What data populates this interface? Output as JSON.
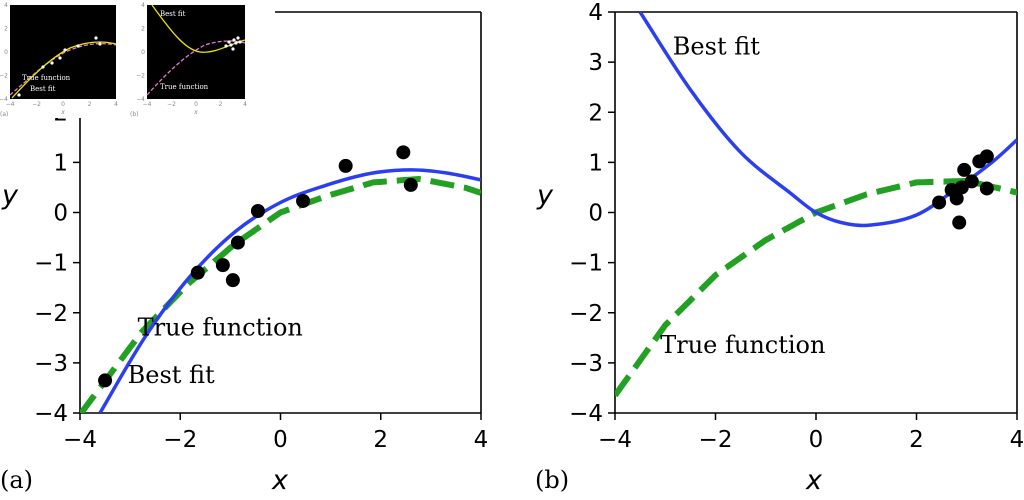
{
  "chart_data": [
    {
      "type": "scatter",
      "panel_label": "(a)",
      "xlabel": "x",
      "ylabel": "y",
      "xlim": [
        -4,
        4
      ],
      "ylim": [
        -4,
        4
      ],
      "xticks": [
        -4,
        -2,
        0,
        2,
        4
      ],
      "yticks": [
        -4,
        -3,
        -2,
        -1,
        0,
        1,
        2,
        3,
        4
      ],
      "xtick_labels": [
        "−4",
        "−2",
        "0",
        "2",
        "4"
      ],
      "ytick_labels": [
        "−4",
        "−3",
        "−2",
        "−1",
        "0",
        "1",
        "2",
        "3",
        "4"
      ],
      "points": {
        "color": "#000000",
        "x": [
          -3.5,
          -1.65,
          -1.15,
          -0.95,
          -0.85,
          -0.45,
          0.45,
          1.3,
          2.45,
          2.6
        ],
        "y": [
          -3.35,
          -1.2,
          -1.05,
          -1.35,
          -0.6,
          0.03,
          0.23,
          0.93,
          1.2,
          0.55
        ]
      },
      "curves": [
        {
          "role": "true",
          "style": "dashed",
          "color": "#22a022",
          "formula": "sin(x/2) with amplitude 0.65",
          "samples": {
            "x": [
              -3.7,
              -2.775,
              -1.85,
              -0.925,
              0.0,
              0.925,
              1.85,
              2.775,
              3.7,
              4.0
            ],
            "y": [
              -3.63,
              -2.39,
              -1.43,
              -0.64,
              0.0,
              0.33,
              0.6,
              0.67,
              0.49,
              0.39
            ]
          }
        },
        {
          "role": "fit",
          "style": "solid",
          "color": "#2b3ff0",
          "samples": {
            "x": [
              -3.6,
              -2.7,
              -1.8,
              -0.9,
              0.0,
              0.9,
              1.8,
              2.6,
              3.3,
              4.0
            ],
            "y": [
              -4.0,
              -2.48,
              -1.27,
              -0.38,
              0.2,
              0.54,
              0.78,
              0.85,
              0.79,
              0.65
            ]
          }
        }
      ],
      "annotations": [
        {
          "text": "True function",
          "x": -2.85,
          "y": -2.45
        },
        {
          "text": "Best fit",
          "x": -3.05,
          "y": -3.4
        }
      ]
    },
    {
      "type": "scatter",
      "panel_label": "(b)",
      "xlabel": "x",
      "ylabel": "y",
      "xlim": [
        -4,
        4
      ],
      "ylim": [
        -4,
        4
      ],
      "xticks": [
        -4,
        -2,
        0,
        2,
        4
      ],
      "yticks": [
        -4,
        -3,
        -2,
        -1,
        0,
        1,
        2,
        3,
        4
      ],
      "xtick_labels": [
        "−4",
        "−2",
        "0",
        "2",
        "4"
      ],
      "ytick_labels": [
        "−4",
        "−3",
        "−2",
        "−1",
        "0",
        "1",
        "2",
        "3",
        "4"
      ],
      "points": {
        "color": "#000000",
        "x": [
          2.45,
          2.7,
          2.8,
          2.85,
          2.9,
          2.95,
          3.1,
          3.25,
          3.4,
          3.4
        ],
        "y": [
          0.2,
          0.45,
          0.28,
          -0.2,
          0.5,
          0.85,
          0.62,
          1.02,
          1.12,
          0.48
        ]
      },
      "curves": [
        {
          "role": "true",
          "style": "dashed",
          "color": "#22a022",
          "formula": "sin(x/2) with amplitude 0.65",
          "samples": {
            "x": [
              -4.0,
              -3.0,
              -2.0,
              -1.0,
              0.0,
              1.0,
              2.0,
              3.0,
              4.0
            ],
            "y": [
              -3.65,
              -2.25,
              -1.25,
              -0.55,
              0.0,
              0.36,
              0.6,
              0.63,
              0.4
            ]
          }
        },
        {
          "role": "fit",
          "style": "solid",
          "color": "#2b3ff0",
          "samples": {
            "x": [
              -3.5,
              -2.5,
              -1.5,
              -0.5,
              0.0,
              0.5,
              1.1,
              2.0,
              2.8,
              3.5,
              4.0
            ],
            "y": [
              4.0,
              2.45,
              1.2,
              0.38,
              0.0,
              -0.2,
              -0.25,
              -0.05,
              0.48,
              1.0,
              1.45
            ]
          }
        }
      ],
      "annotations": [
        {
          "text": "Best fit",
          "x": -2.85,
          "y": 3.15
        },
        {
          "text": "True function",
          "x": -3.1,
          "y": -2.8
        }
      ]
    }
  ],
  "insets": [
    {
      "id": "inset-a",
      "panel_label": "(a)",
      "true_label": "True function",
      "fit_label": "Best fit",
      "fit_color": "#e6e600",
      "true_color": "#e67ac8",
      "xtick_labels": [
        "−4",
        "−2",
        "0",
        "2",
        "4"
      ],
      "ytick_labels": [
        "4",
        "2",
        "0",
        "−2",
        "−4"
      ],
      "xlabel": "x"
    },
    {
      "id": "inset-b",
      "panel_label": "(b)",
      "true_label": "True function",
      "fit_label": "Best fit",
      "fit_color": "#e6e600",
      "true_color": "#e67ac8",
      "xtick_labels": [
        "−4",
        "−2",
        "0",
        "2",
        "4"
      ],
      "ytick_labels": [
        "4",
        "2",
        "0",
        "−2",
        "−4"
      ],
      "xlabel": "x"
    }
  ]
}
